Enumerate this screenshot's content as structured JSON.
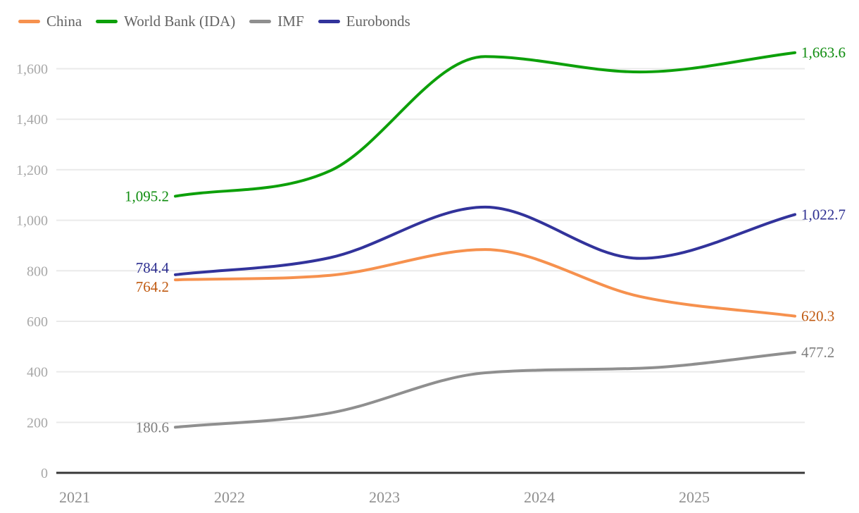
{
  "chart_data": {
    "type": "line",
    "title": "",
    "xlabel": "",
    "ylabel": "",
    "x": [
      2021.65,
      2022.65,
      2023.65,
      2024.65,
      2025.65
    ],
    "x_ticks": [
      "2021",
      "2022",
      "2023",
      "2024",
      "2025"
    ],
    "y_ticks": [
      "0",
      "200",
      "400",
      "600",
      "800",
      "1,000",
      "1,200",
      "1,400",
      "1,600"
    ],
    "ylim": [
      0,
      1600
    ],
    "grid": "horizontal",
    "legend_position": "top-left",
    "series": [
      {
        "name": "China",
        "color": "#F6914E",
        "label_color": "#C05A11",
        "values": [
          764.2,
          782,
          884,
          698,
          620.3
        ],
        "start_label": "764.2",
        "end_label": "620.3"
      },
      {
        "name": "World Bank (IDA)",
        "color": "#0DA00A",
        "label_color": "#0E8C0E",
        "values": [
          1095.2,
          1196,
          1648,
          1587,
          1663.6
        ],
        "start_label": "1,095.2",
        "end_label": "1,663.6"
      },
      {
        "name": "IMF",
        "color": "#8F8F8F",
        "label_color": "#7E7E7E",
        "values": [
          180.6,
          237,
          396,
          414,
          477.2
        ],
        "start_label": "180.6",
        "end_label": "477.2"
      },
      {
        "name": "Eurobonds",
        "color": "#32339B",
        "label_color": "#2C2E90",
        "values": [
          784.4,
          852,
          1052,
          849,
          1022.7
        ],
        "start_label": "784.4",
        "end_label": "1,022.7"
      }
    ],
    "axis_color": "#383838",
    "grid_color": "#EAEAEA",
    "tick_label_color": "#A8A8A8"
  }
}
